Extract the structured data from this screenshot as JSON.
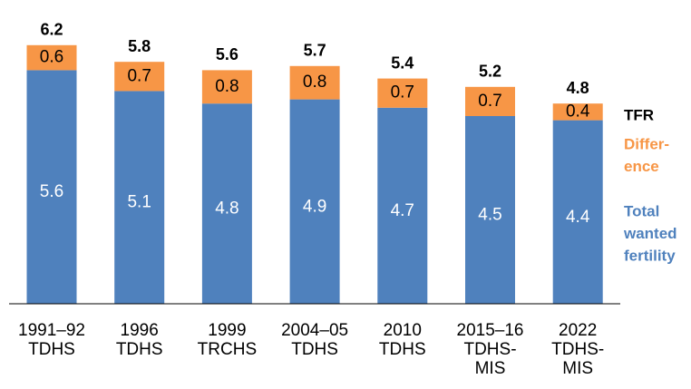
{
  "chart_data": {
    "type": "stacked-bar",
    "categories": [
      [
        "1991–92",
        "TDHS"
      ],
      [
        "1996",
        "TDHS"
      ],
      [
        "1999",
        "TRCHS"
      ],
      [
        "2004–05",
        "TDHS"
      ],
      [
        "2010",
        "TDHS"
      ],
      [
        "2015–16",
        "TDHS-",
        "MIS"
      ],
      [
        "2022",
        "TDHS-",
        "MIS"
      ]
    ],
    "series": [
      {
        "name": [
          "Total",
          "wanted",
          "fertility"
        ],
        "color": "#4f81bd",
        "label_color": "#ffffff",
        "values": [
          5.6,
          5.1,
          4.8,
          4.9,
          4.7,
          4.5,
          4.4
        ]
      },
      {
        "name": [
          "Differ-",
          "ence"
        ],
        "color": "#f79646",
        "label_color": "#000000",
        "values": [
          0.6,
          0.7,
          0.8,
          0.8,
          0.7,
          0.7,
          0.4
        ]
      }
    ],
    "totals": {
      "name": [
        "TFR"
      ],
      "color": "#000000",
      "values": [
        6.2,
        5.8,
        5.6,
        5.7,
        5.4,
        5.2,
        4.8
      ]
    }
  }
}
